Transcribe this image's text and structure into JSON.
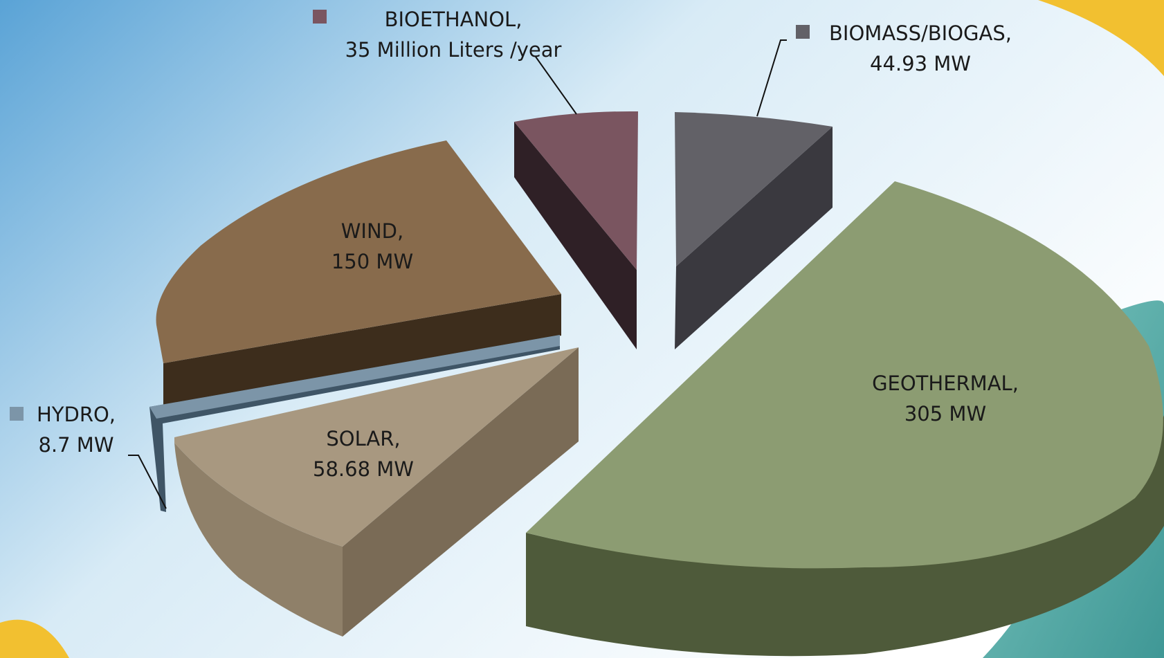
{
  "chart_data": {
    "type": "pie",
    "style": "3d-exploded",
    "slices": [
      {
        "name": "GEOTHERMAL",
        "label_value": "305 MW",
        "value": 305,
        "color": "#8c9c72",
        "dark": "#4e5a3a"
      },
      {
        "name": "SOLAR",
        "label_value": "58.68 MW",
        "value": 58.68,
        "color": "#a89880",
        "dark": "#7a6b56"
      },
      {
        "name": "HYDRO",
        "label_value": "8.7 MW",
        "value": 8.7,
        "color": "#7c95a8",
        "dark": "#3f5566"
      },
      {
        "name": "WIND",
        "label_value": "150 MW",
        "value": 150,
        "color": "#886b4c",
        "dark": "#3d2d1c"
      },
      {
        "name": "BIOETHANOL",
        "label_value": "35 Million Liters /year",
        "value": 35,
        "color": "#7a5560",
        "dark": "#2f2026"
      },
      {
        "name": "BIOMASS/BIOGAS",
        "label_value": "44.93 MW",
        "value": 44.93,
        "color": "#626167",
        "dark": "#3a393f"
      }
    ],
    "labels": {
      "geothermal": {
        "name": "GEOTHERMAL,",
        "value": "305 MW"
      },
      "solar": {
        "name": "SOLAR,",
        "value": "58.68 MW"
      },
      "hydro": {
        "name": "HYDRO,",
        "value": "8.7 MW"
      },
      "wind": {
        "name": "WIND,",
        "value": "150 MW"
      },
      "bioethanol": {
        "name": "BIOETHANOL,",
        "value": "35 Million Liters /year"
      },
      "biomass": {
        "name": "BIOMASS/BIOGAS,",
        "value": "44.93 MW"
      }
    }
  }
}
